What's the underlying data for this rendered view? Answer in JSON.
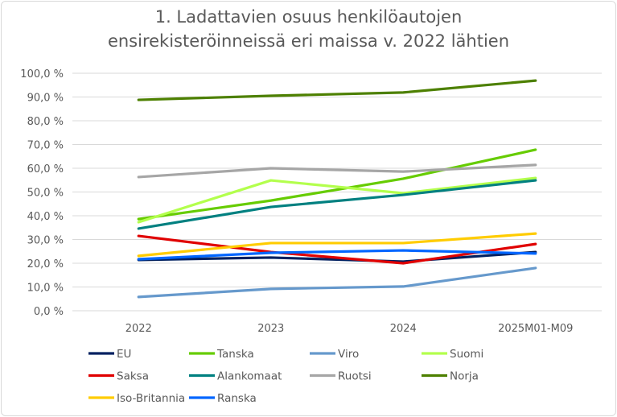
{
  "chart_data": {
    "type": "line",
    "title": "1. Ladattavien osuus henkilöautojen ensirekisteröinneissä eri maissa v. 2022 lähtien",
    "title_lines": [
      "1. Ladattavien osuus henkilöautojen",
      "ensirekisteröinneissä eri maissa v. 2022 lähtien"
    ],
    "xlabel": "",
    "ylabel": "",
    "categories": [
      "2022",
      "2023",
      "2024",
      "2025M01-M09"
    ],
    "ylim": [
      0,
      100
    ],
    "yticks": [
      "0,0 %",
      "10,0 %",
      "20,0 %",
      "30,0 %",
      "40,0 %",
      "50,0 %",
      "60,0 %",
      "70,0 %",
      "80,0 %",
      "90,0 %",
      "100,0 %"
    ],
    "grid": true,
    "legend_position": "bottom",
    "series": [
      {
        "name": "EU",
        "color": "#002060",
        "values": [
          21.4,
          22.4,
          20.7,
          24.7
        ]
      },
      {
        "name": "Tanska",
        "color": "#66cc00",
        "values": [
          38.6,
          46.4,
          55.6,
          67.8
        ]
      },
      {
        "name": "Viro",
        "color": "#6699cc",
        "values": [
          5.8,
          9.2,
          10.2,
          18.0
        ]
      },
      {
        "name": "Suomi",
        "color": "#b3ff4d",
        "values": [
          37.3,
          54.9,
          49.5,
          55.9
        ]
      },
      {
        "name": "Saksa",
        "color": "#e00000",
        "values": [
          31.5,
          24.7,
          20.0,
          28.1
        ]
      },
      {
        "name": "Alankomaat",
        "color": "#008080",
        "values": [
          34.6,
          43.7,
          48.8,
          54.9
        ]
      },
      {
        "name": "Ruotsi",
        "color": "#a6a6a6",
        "values": [
          56.3,
          60.0,
          58.6,
          61.4
        ]
      },
      {
        "name": "Norja",
        "color": "#4d8000",
        "values": [
          88.8,
          90.5,
          91.9,
          96.9
        ]
      },
      {
        "name": "Iso-Britannia",
        "color": "#ffcc00",
        "values": [
          23.1,
          28.5,
          28.5,
          32.5
        ]
      },
      {
        "name": "Ranska",
        "color": "#0066ff",
        "values": [
          21.7,
          24.4,
          25.4,
          24.1
        ]
      }
    ]
  }
}
